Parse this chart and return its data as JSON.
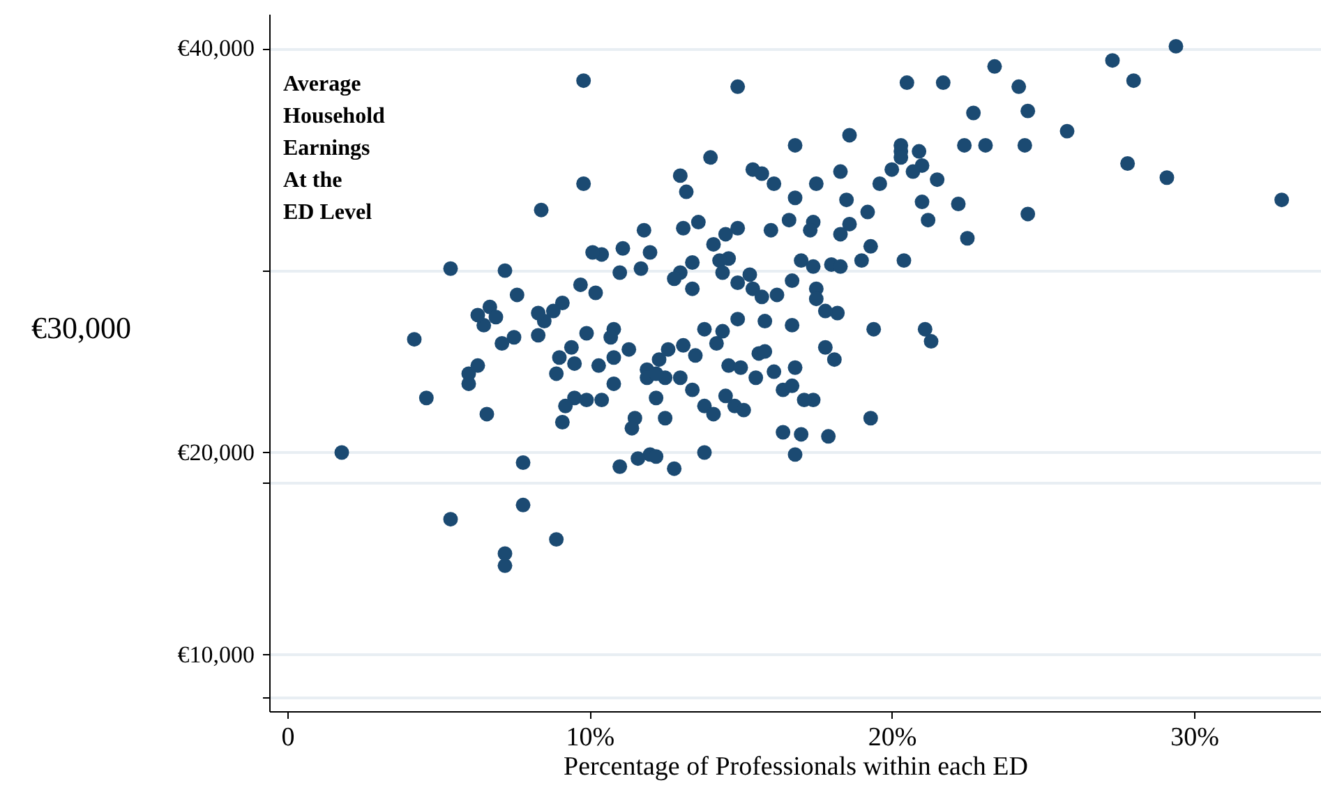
{
  "chart_data": {
    "type": "scatter",
    "annotations": [
      "Average\nHousehold\nEarnings\nAt the\nED Level"
    ],
    "xlabel": "Percentage of Professionals within each ED",
    "ylabel": "€30,000",
    "xlim": [
      -0.6,
      34.2
    ],
    "xticks": [
      0,
      {
        "value": 10,
        "label": "10%"
      },
      {
        "value": 20,
        "label": "20%"
      },
      {
        "value": 30,
        "label": "30%"
      }
    ],
    "ylim": [
      7200,
      41700
    ],
    "yticks": [
      {
        "value": 10000,
        "label": "€10,000"
      },
      {
        "value": 20000,
        "label": "€20,000"
      },
      {
        "value": 40000,
        "label": "€40,000"
      },
      {
        "value": 29000,
        "label": null
      },
      {
        "value": 18500,
        "label": null
      },
      {
        "value": 7900,
        "label": null
      }
    ],
    "grid": "y",
    "marker": "circle",
    "series": [
      {
        "color": "#1b4a72",
        "x": [
          9.8,
          14.9,
          20.5,
          21.7,
          23.4,
          24.2,
          24.5,
          27.3,
          28.0,
          29.4,
          32.9,
          29.1,
          27.8,
          25.8,
          24.4,
          23.1,
          22.4,
          22.7,
          18.6,
          16.8,
          20.3,
          20.3,
          20.9,
          21.0,
          21.5,
          20.3,
          20.7,
          20.0,
          19.6,
          18.3,
          17.5,
          16.8,
          16.1,
          15.4,
          15.7,
          14.0,
          13.0,
          13.2,
          9.8,
          8.4,
          24.5,
          22.5,
          21.2,
          21.0,
          22.2,
          18.5,
          19.2,
          18.6,
          18.3,
          17.4,
          16.6,
          17.3,
          16.0,
          17.0,
          17.4,
          18.0,
          18.3,
          19.0,
          19.3,
          20.4,
          16.7,
          17.5,
          16.2,
          14.9,
          14.5,
          14.1,
          14.6,
          13.6,
          13.1,
          11.8,
          11.1,
          10.4,
          10.1,
          12.0,
          13.0,
          13.4,
          12.8,
          14.3,
          14.4,
          14.9,
          15.4,
          15.7,
          15.3,
          13.4,
          11.7,
          11.0,
          10.2,
          9.7,
          9.1,
          8.8,
          8.5,
          8.3,
          7.6,
          7.2,
          6.7,
          6.9,
          6.5,
          6.3,
          5.4,
          7.5,
          7.1,
          8.3,
          4.2,
          6.0,
          6.0,
          4.6,
          6.3,
          6.6,
          1.8,
          5.4,
          7.2,
          7.2,
          7.8,
          7.8,
          8.9,
          9.9,
          10.8,
          9.4,
          9.0,
          8.9,
          9.5,
          10.3,
          10.7,
          10.8,
          11.3,
          11.9,
          12.3,
          12.6,
          13.1,
          13.5,
          13.0,
          12.5,
          11.9,
          10.8,
          9.5,
          9.2,
          9.1,
          9.9,
          10.4,
          12.2,
          12.2,
          12.5,
          11.5,
          11.4,
          12.0,
          11.0,
          11.6,
          12.2,
          12.8,
          13.8,
          13.4,
          13.8,
          14.1,
          14.6,
          15.0,
          14.5,
          14.8,
          15.1,
          15.6,
          15.5,
          16.1,
          16.4,
          16.8,
          16.7,
          17.8,
          18.1,
          17.4,
          17.1,
          17.0,
          16.4,
          16.8,
          17.9,
          19.3,
          19.4,
          21.1,
          21.3,
          13.8,
          14.2,
          14.4,
          14.9,
          15.8,
          16.7,
          17.5,
          18.2,
          17.8,
          15.8
        ],
        "values": [
          38400,
          38100,
          38300,
          38300,
          39100,
          38100,
          36900,
          39400,
          38400,
          40100,
          32500,
          33600,
          34300,
          35900,
          35200,
          35200,
          35200,
          36800,
          35700,
          35200,
          35200,
          34900,
          34900,
          34200,
          33500,
          34600,
          33900,
          34000,
          33300,
          33900,
          33300,
          32600,
          33300,
          34000,
          33800,
          34600,
          33700,
          32900,
          33300,
          32000,
          31800,
          30600,
          31500,
          32400,
          32300,
          32500,
          31900,
          31300,
          30800,
          31400,
          31500,
          31000,
          31000,
          29500,
          29200,
          29300,
          29200,
          29500,
          30200,
          29500,
          28500,
          28100,
          27800,
          31100,
          30800,
          30300,
          29600,
          31400,
          31100,
          31000,
          30100,
          29800,
          29900,
          29900,
          28900,
          29400,
          28600,
          29500,
          28900,
          28400,
          28100,
          27700,
          28800,
          28100,
          29100,
          28900,
          27900,
          28300,
          27400,
          27000,
          26500,
          25800,
          27800,
          29000,
          27200,
          26700,
          26300,
          26800,
          29100,
          25700,
          25400,
          26900,
          25600,
          23900,
          23400,
          22700,
          24300,
          21900,
          20000,
          16700,
          14400,
          15000,
          17400,
          19500,
          15700,
          25900,
          26100,
          25200,
          24700,
          23900,
          24400,
          24300,
          25700,
          24700,
          25100,
          24100,
          24600,
          25100,
          25300,
          24800,
          23700,
          23700,
          23700,
          23400,
          22700,
          22300,
          21500,
          22600,
          22600,
          23900,
          22700,
          21700,
          21700,
          21200,
          19900,
          19300,
          19700,
          19800,
          19200,
          20000,
          23100,
          22300,
          21900,
          24300,
          24200,
          22800,
          22300,
          22100,
          24900,
          23700,
          24000,
          23100,
          24200,
          23300,
          25200,
          24600,
          22600,
          22600,
          20900,
          21000,
          19900,
          20800,
          21700,
          26100,
          26100,
          25500,
          26100,
          25400,
          26000,
          26600,
          26500,
          26300,
          27600,
          26900,
          27000,
          25000
        ]
      }
    ]
  }
}
